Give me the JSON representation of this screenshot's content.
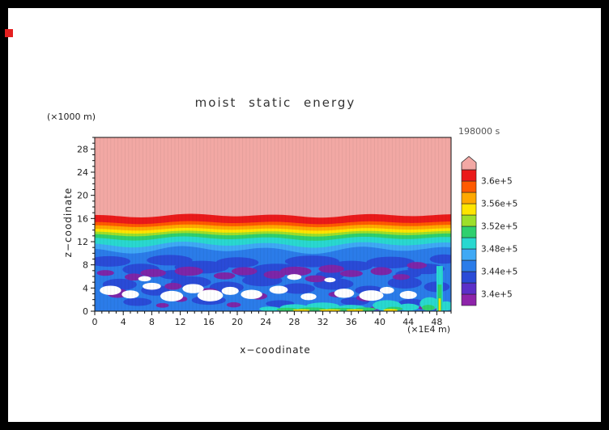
{
  "page": {
    "marker_color": "#e41f1f"
  },
  "chart_data": {
    "type": "heatmap",
    "title": "moist static energy",
    "timestamp": "198000 s",
    "xlabel": "x−coodinate",
    "ylabel": "z−coodinate",
    "x_unit": "(×1E4 m)",
    "y_unit": "(×1000 m)",
    "xlim": [
      0,
      50
    ],
    "ylim": [
      0,
      30
    ],
    "x_major_ticks": [
      0,
      4,
      8,
      12,
      16,
      20,
      24,
      28,
      32,
      36,
      40,
      44,
      48
    ],
    "y_major_ticks": [
      0,
      4,
      8,
      12,
      16,
      20,
      24,
      28
    ],
    "x_minor_step": 1,
    "y_minor_step": 1,
    "colorbar": {
      "cap_color": "#f2a8a4",
      "cells_bottom_to_top": [
        "#8e24aa",
        "#5b2fc8",
        "#2a4bd7",
        "#2b7ce9",
        "#3fa9f5",
        "#29d8d0",
        "#2fd06e",
        "#9ddf2a",
        "#ffe400",
        "#ffa800",
        "#ff5a00",
        "#ea1a1a"
      ],
      "labels_top_to_bottom": [
        "3.6e+5",
        "3.56e+5",
        "3.52e+5",
        "3.48e+5",
        "3.44e+5",
        "3.4e+5"
      ]
    },
    "field": {
      "background_color": "#f2a8a4",
      "layers_top_to_bottom": [
        {
          "color": "#ea1a1a",
          "z_top": 16.5,
          "wave": 0.22
        },
        {
          "color": "#ff5a00",
          "z_top": 15.3,
          "wave": 0.18
        },
        {
          "color": "#ffa800",
          "z_top": 14.75,
          "wave": 0.16
        },
        {
          "color": "#ffe400",
          "z_top": 14.15,
          "wave": 0.16
        },
        {
          "color": "#9ddf2a",
          "z_top": 13.65,
          "wave": 0.18
        },
        {
          "color": "#2fd06e",
          "z_top": 13.2,
          "wave": 0.2
        },
        {
          "color": "#29d8d0",
          "z_top": 12.55,
          "wave": 0.25
        },
        {
          "color": "#3fa9f5",
          "z_top": 11.5,
          "wave": 0.35
        },
        {
          "color": "#2b7ce9",
          "z_top": 10.6,
          "wave": 0.45
        }
      ],
      "shapes": [
        {
          "name": "dark-blue-eddies",
          "color": "#2a4bd7",
          "ellipses": [
            [
              2,
              8.6,
              3,
              0.9
            ],
            [
              6.5,
              7.2,
              2.6,
              1.0
            ],
            [
              10.5,
              8.8,
              3.2,
              0.9
            ],
            [
              15,
              7.6,
              3.8,
              1.1
            ],
            [
              20,
              8.4,
              3.0,
              0.9
            ],
            [
              25.5,
              7.2,
              3.4,
              1.0
            ],
            [
              30.5,
              8.6,
              3.8,
              1.0
            ],
            [
              36,
              7.8,
              3.0,
              0.9
            ],
            [
              41.5,
              8.4,
              3.4,
              1.0
            ],
            [
              46.5,
              7.3,
              2.6,
              0.9
            ],
            [
              49,
              9.0,
              2.0,
              0.8
            ],
            [
              3.5,
              4.6,
              2.4,
              1.0
            ],
            [
              8.5,
              3.6,
              2.0,
              0.9
            ],
            [
              13.5,
              5.0,
              2.8,
              1.0
            ],
            [
              18.5,
              4.1,
              2.4,
              1.0
            ],
            [
              23.5,
              5.3,
              2.8,
              1.0
            ],
            [
              28.5,
              3.9,
              2.4,
              0.9
            ],
            [
              33.5,
              4.7,
              2.8,
              1.0
            ],
            [
              38.5,
              3.6,
              2.0,
              0.8
            ],
            [
              43.5,
              4.9,
              2.4,
              1.0
            ],
            [
              48,
              4.2,
              1.8,
              0.9
            ],
            [
              6,
              1.6,
              2.0,
              0.7
            ],
            [
              16,
              1.9,
              2.4,
              0.8
            ],
            [
              26,
              1.3,
              2.0,
              0.6
            ],
            [
              36.5,
              1.7,
              2.0,
              0.7
            ],
            [
              44.5,
              1.5,
              1.8,
              0.6
            ],
            [
              11,
              6.3,
              2.0,
              0.8
            ],
            [
              22,
              6.6,
              2.2,
              0.8
            ],
            [
              33,
              6.2,
              2.0,
              0.8
            ],
            [
              44,
              6.4,
              1.8,
              0.7
            ]
          ]
        },
        {
          "name": "purple-minima",
          "color": "#7d26a8",
          "ellipses": [
            [
              1.5,
              6.6,
              1.2,
              0.5
            ],
            [
              3.2,
              3.1,
              1.5,
              0.8
            ],
            [
              5.5,
              5.9,
              1.3,
              0.6
            ],
            [
              8.2,
              6.6,
              1.8,
              0.7
            ],
            [
              11,
              4.3,
              1.2,
              0.6
            ],
            [
              13.2,
              6.9,
              2.0,
              0.8
            ],
            [
              16,
              3.3,
              1.4,
              0.7
            ],
            [
              18.2,
              6.1,
              1.5,
              0.6
            ],
            [
              21,
              6.9,
              1.8,
              0.7
            ],
            [
              23,
              2.6,
              1.2,
              0.6
            ],
            [
              25.2,
              6.3,
              1.5,
              0.7
            ],
            [
              28.2,
              6.9,
              2.2,
              0.8
            ],
            [
              31,
              5.6,
              1.5,
              0.6
            ],
            [
              33.2,
              7.3,
              1.8,
              0.7
            ],
            [
              36,
              6.5,
              1.6,
              0.6
            ],
            [
              38,
              2.3,
              1.3,
              0.6
            ],
            [
              40.2,
              6.9,
              1.5,
              0.7
            ],
            [
              43,
              5.9,
              1.2,
              0.5
            ],
            [
              45.2,
              7.9,
              1.4,
              0.6
            ],
            [
              12,
              2.1,
              1.0,
              0.5
            ],
            [
              34,
              2.9,
              1.2,
              0.5
            ],
            [
              39.5,
              0.5,
              0.9,
              0.35
            ],
            [
              41.5,
              0.6,
              0.7,
              0.3
            ],
            [
              43.5,
              0.5,
              0.8,
              0.3
            ],
            [
              46,
              0.6,
              0.7,
              0.3
            ],
            [
              48,
              0.5,
              0.8,
              0.3
            ],
            [
              19.5,
              1.1,
              1.0,
              0.45
            ],
            [
              9.5,
              1.0,
              0.9,
              0.4
            ]
          ]
        },
        {
          "name": "white-holes",
          "color": "#ffffff",
          "ellipses": [
            [
              2.2,
              3.6,
              1.5,
              0.8
            ],
            [
              5,
              2.9,
              1.2,
              0.7
            ],
            [
              8,
              4.3,
              1.3,
              0.6
            ],
            [
              10.8,
              2.6,
              1.6,
              0.9
            ],
            [
              13.8,
              3.9,
              1.5,
              0.8
            ],
            [
              16.2,
              2.7,
              1.8,
              1.0
            ],
            [
              19,
              3.5,
              1.2,
              0.7
            ],
            [
              22,
              2.9,
              1.5,
              0.8
            ],
            [
              25.8,
              3.7,
              1.3,
              0.7
            ],
            [
              30,
              2.5,
              1.1,
              0.6
            ],
            [
              35,
              3.1,
              1.4,
              0.8
            ],
            [
              38.8,
              2.7,
              1.7,
              0.9
            ],
            [
              41,
              3.6,
              1.0,
              0.6
            ],
            [
              44,
              2.8,
              1.2,
              0.7
            ],
            [
              7,
              5.6,
              0.9,
              0.45
            ],
            [
              28,
              5.9,
              1.0,
              0.5
            ],
            [
              33,
              5.4,
              0.8,
              0.4
            ]
          ]
        },
        {
          "name": "cyan-surface-patches",
          "color": "#29d8d0",
          "ellipses": [
            [
              28,
              0.6,
              2.0,
              0.6
            ],
            [
              32,
              0.8,
              2.4,
              0.7
            ],
            [
              36,
              0.5,
              2.0,
              0.6
            ],
            [
              41,
              1.0,
              2.0,
              0.9
            ],
            [
              44,
              0.7,
              1.5,
              0.6
            ],
            [
              47,
              1.3,
              1.4,
              1.1
            ],
            [
              49.3,
              0.9,
              1.0,
              0.8
            ],
            [
              24.5,
              0.4,
              1.4,
              0.4
            ]
          ]
        },
        {
          "name": "green-surface-streaks",
          "color": "#2fd06e",
          "ellipses": [
            [
              27,
              0.3,
              1.5,
              0.3
            ],
            [
              30.5,
              0.35,
              2.0,
              0.3
            ],
            [
              34.5,
              0.3,
              2.0,
              0.28
            ],
            [
              38,
              0.35,
              1.5,
              0.3
            ],
            [
              42,
              0.4,
              1.2,
              0.35
            ],
            [
              46.8,
              0.6,
              0.9,
              0.5
            ]
          ]
        },
        {
          "name": "yellow-surface-streaks",
          "color": "#ffe400",
          "ellipses": [
            [
              29,
              0.18,
              1.2,
              0.16
            ],
            [
              33,
              0.18,
              1.5,
              0.16
            ],
            [
              36.5,
              0.18,
              1.2,
              0.16
            ],
            [
              41.5,
              0.2,
              1.0,
              0.18
            ]
          ]
        }
      ],
      "plume": {
        "x": 48.4,
        "segments": [
          {
            "color": "#29d8d0",
            "width": 0.9,
            "z_top": 7.8
          },
          {
            "color": "#2fd06e",
            "width": 0.55,
            "z_top": 4.6
          },
          {
            "color": "#ffe400",
            "width": 0.3,
            "z_top": 2.2
          }
        ]
      }
    }
  }
}
